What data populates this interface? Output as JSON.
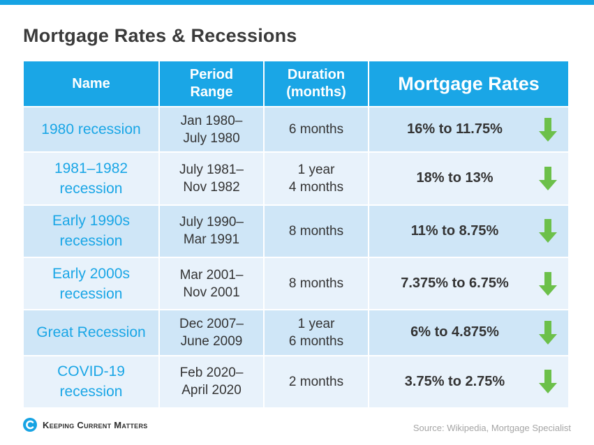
{
  "title": "Mortgage Rates & Recessions",
  "table": {
    "headers": {
      "name": "Name",
      "period_1": "Period",
      "period_2": "Range",
      "duration_1": "Duration",
      "duration_2": "(months)",
      "rates": "Mortgage Rates"
    },
    "rows": [
      {
        "name": [
          "1980 recession",
          ""
        ],
        "period": [
          "Jan 1980–",
          "July 1980"
        ],
        "duration": [
          "6 months",
          ""
        ],
        "rate": "16% to 11.75%",
        "trend": "down"
      },
      {
        "name": [
          "1981–1982",
          "recession"
        ],
        "period": [
          "July 1981–",
          "Nov 1982"
        ],
        "duration": [
          "1 year",
          "4 months"
        ],
        "rate": "18% to 13%",
        "trend": "down"
      },
      {
        "name": [
          "Early 1990s",
          "recession"
        ],
        "period": [
          "July 1990–",
          "Mar 1991"
        ],
        "duration": [
          "8 months",
          ""
        ],
        "rate": "11% to 8.75%",
        "trend": "down"
      },
      {
        "name": [
          "Early 2000s",
          "recession"
        ],
        "period": [
          "Mar 2001–",
          "Nov 2001"
        ],
        "duration": [
          "8 months",
          ""
        ],
        "rate": "7.375% to 6.75%",
        "trend": "down"
      },
      {
        "name": [
          "Great Recession",
          ""
        ],
        "period": [
          "Dec 2007–",
          "June 2009"
        ],
        "duration": [
          "1 year",
          "6 months"
        ],
        "rate": "6% to 4.875%",
        "trend": "down"
      },
      {
        "name": [
          "COVID-19",
          "recession"
        ],
        "period": [
          "Feb 2020–",
          "April 2020"
        ],
        "duration": [
          "2 months",
          ""
        ],
        "rate": "3.75% to 2.75%",
        "trend": "down"
      }
    ]
  },
  "footer": {
    "logo_text": "Keeping Current Matters",
    "source": "Source: Wikipedia, Mortgage Specialist"
  },
  "colors": {
    "accent": "#16a3e3",
    "header_bg": "#1aa6e6",
    "row_odd": "#cfe6f7",
    "row_even": "#e8f2fb",
    "arrow": "#6cc04a"
  },
  "icons": {
    "trend_down": "down-arrow-icon",
    "logo": "kcm-logo-icon"
  }
}
